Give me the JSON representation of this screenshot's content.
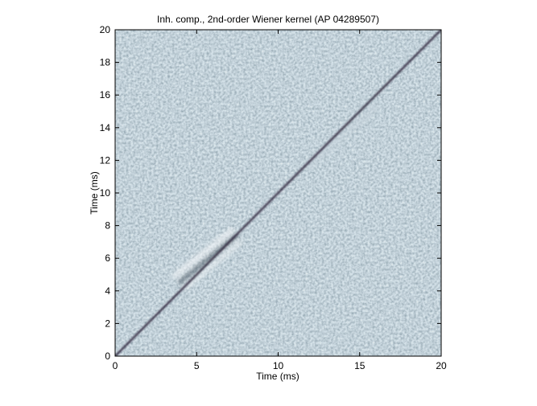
{
  "chart_data": {
    "type": "heatmap",
    "title": "Inh. comp., 2nd-order Wiener kernel (AP 04289507)",
    "x_label": "Time (ms)",
    "y_label": "Time (ms)",
    "xlim": [
      0,
      20
    ],
    "ylim": [
      0,
      20
    ],
    "xticks": [
      0,
      5,
      10,
      15,
      20
    ],
    "yticks": [
      0,
      2,
      4,
      6,
      8,
      10,
      12,
      14,
      16,
      18,
      20
    ]
  }
}
